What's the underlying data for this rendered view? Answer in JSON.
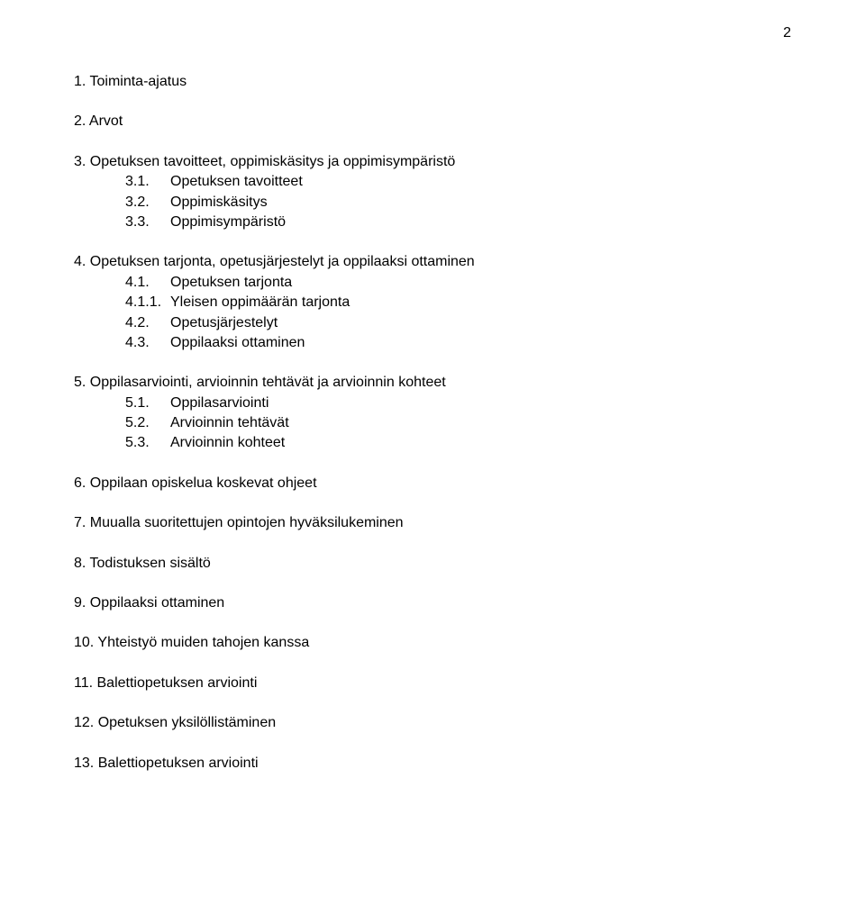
{
  "page_number": "2",
  "sections": [
    {
      "heading": "1. Toiminta-ajatus",
      "subs": []
    },
    {
      "heading": "2. Arvot",
      "subs": []
    },
    {
      "heading": "3. Opetuksen tavoitteet, oppimiskäsitys ja oppimisympäristö",
      "subs": [
        {
          "num": "3.1.",
          "text": "Opetuksen tavoitteet"
        },
        {
          "num": "3.2.",
          "text": "Oppimiskäsitys"
        },
        {
          "num": "3.3.",
          "text": "Oppimisympäristö"
        }
      ]
    },
    {
      "heading": "4. Opetuksen tarjonta, opetusjärjestelyt ja oppilaaksi ottaminen",
      "subs": [
        {
          "num": "4.1.",
          "text": "Opetuksen tarjonta"
        },
        {
          "num": "4.1.1.",
          "text": "Yleisen oppimäärän tarjonta"
        },
        {
          "num": "4.2.",
          "text": "Opetusjärjestelyt"
        },
        {
          "num": "4.3.",
          "text": "Oppilaaksi ottaminen"
        }
      ]
    },
    {
      "heading": "5. Oppilasarviointi, arvioinnin tehtävät ja arvioinnin kohteet",
      "subs": [
        {
          "num": "5.1.",
          "text": "Oppilasarviointi"
        },
        {
          "num": "5.2.",
          "text": "Arvioinnin tehtävät"
        },
        {
          "num": "5.3.",
          "text": "Arvioinnin kohteet"
        }
      ]
    },
    {
      "heading": "6. Oppilaan opiskelua koskevat ohjeet",
      "subs": []
    },
    {
      "heading": "7. Muualla suoritettujen opintojen hyväksilukeminen",
      "subs": []
    },
    {
      "heading": "8. Todistuksen sisältö",
      "subs": []
    },
    {
      "heading": "9.  Oppilaaksi ottaminen",
      "subs": []
    },
    {
      "heading": "10. Yhteistyö muiden tahojen kanssa",
      "subs": []
    },
    {
      "heading": "11. Balettiopetuksen arviointi",
      "subs": []
    },
    {
      "heading": "12. Opetuksen yksilöllistäminen",
      "subs": []
    },
    {
      "heading": "13. Balettiopetuksen arviointi",
      "subs": []
    }
  ]
}
